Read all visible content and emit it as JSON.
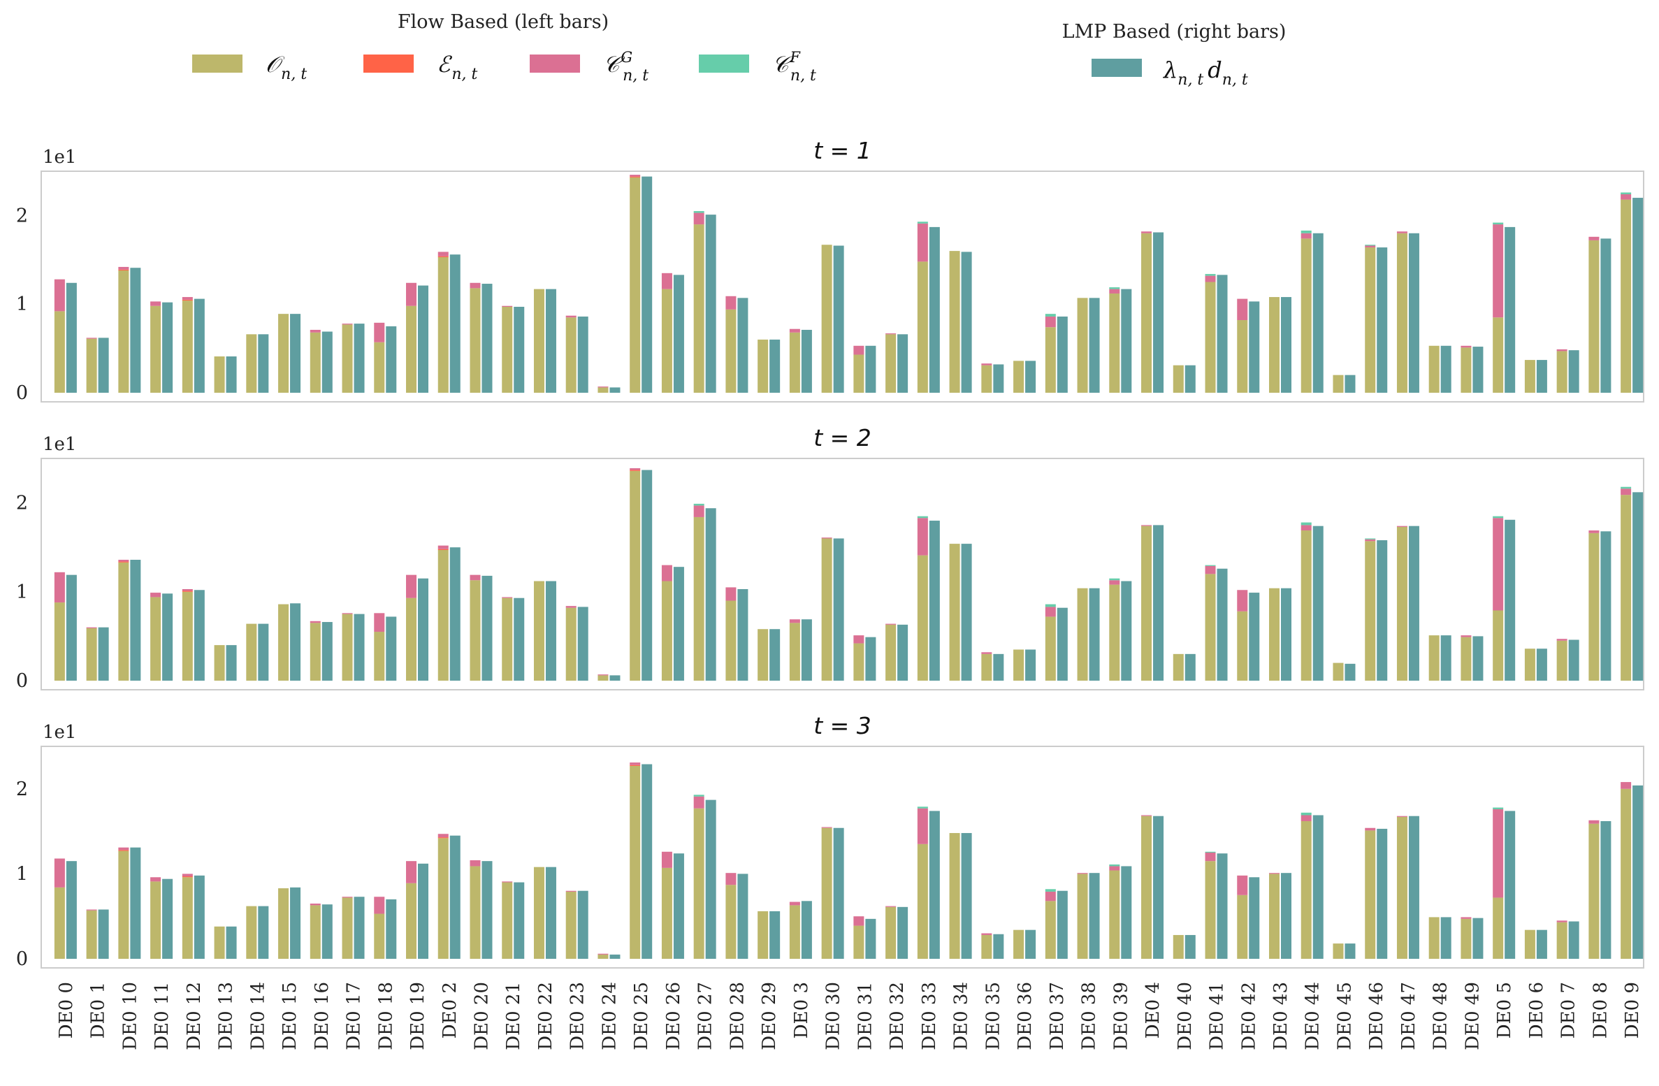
{
  "legend": {
    "flow_title": "Flow Based (left bars)",
    "lmp_title": "LMP Based (right bars)",
    "flow_items": [
      {
        "key": "O",
        "label": "𝒪",
        "sub": "n, t",
        "sup": "",
        "color": "#bdb76b"
      },
      {
        "key": "E",
        "label": "ℰ",
        "sub": "n, t",
        "sup": "",
        "color": "#ff6347"
      },
      {
        "key": "CG",
        "label": "𝒞",
        "sub": "n, t",
        "sup": "G",
        "color": "#db7093"
      },
      {
        "key": "CF",
        "label": "𝒞",
        "sub": "n, t",
        "sup": "F",
        "color": "#66cdaa"
      }
    ],
    "lmp_items": [
      {
        "key": "LMP",
        "label": "λ",
        "sub": "n, t",
        "label2": "d",
        "sub2": "n, t",
        "color": "#5f9ea0"
      }
    ]
  },
  "chart_data": [
    {
      "type": "bar",
      "title": "t = 1",
      "offset_label": "1e1",
      "ylim": [
        0,
        2.5
      ],
      "yticks": [
        "0",
        "1",
        "2"
      ],
      "grid": false,
      "categories": [
        "DE0 0",
        "DE0 1",
        "DE0 10",
        "DE0 11",
        "DE0 12",
        "DE0 13",
        "DE0 14",
        "DE0 15",
        "DE0 16",
        "DE0 17",
        "DE0 18",
        "DE0 19",
        "DE0 2",
        "DE0 20",
        "DE0 21",
        "DE0 22",
        "DE0 23",
        "DE0 24",
        "DE0 25",
        "DE0 26",
        "DE0 27",
        "DE0 28",
        "DE0 29",
        "DE0 3",
        "DE0 30",
        "DE0 31",
        "DE0 32",
        "DE0 33",
        "DE0 34",
        "DE0 35",
        "DE0 36",
        "DE0 37",
        "DE0 38",
        "DE0 39",
        "DE0 4",
        "DE0 40",
        "DE0 41",
        "DE0 42",
        "DE0 43",
        "DE0 44",
        "DE0 45",
        "DE0 46",
        "DE0 47",
        "DE0 48",
        "DE0 49",
        "DE0 5",
        "DE0 6",
        "DE0 7",
        "DE0 8",
        "DE0 9"
      ],
      "series": [
        {
          "name": "𝒪n,t",
          "stack": "flow",
          "values": [
            0.92,
            0.61,
            1.38,
            0.98,
            1.04,
            0.41,
            0.66,
            0.89,
            0.68,
            0.77,
            0.57,
            0.98,
            1.53,
            1.18,
            0.97,
            1.17,
            0.85,
            0.06,
            2.43,
            1.17,
            1.9,
            0.94,
            0.6,
            0.68,
            1.67,
            0.43,
            0.66,
            1.48,
            1.6,
            0.31,
            0.36,
            0.74,
            1.07,
            1.12,
            1.8,
            0.31,
            1.25,
            0.82,
            1.08,
            1.74,
            0.2,
            1.64,
            1.8,
            0.53,
            0.51,
            0.85,
            0.37,
            0.47,
            1.72,
            2.18
          ]
        },
        {
          "name": "ℰn,t",
          "stack": "flow",
          "values": [
            0,
            0,
            0.01,
            0,
            0.01,
            0,
            0,
            0,
            0,
            0,
            0,
            0,
            0.01,
            0,
            0,
            0,
            0,
            0,
            0.01,
            0,
            0,
            0,
            0,
            0,
            0,
            0,
            0,
            0,
            0,
            0,
            0,
            0,
            0,
            0,
            0,
            0,
            0,
            0,
            0,
            0,
            0,
            0,
            0,
            0,
            0,
            0,
            0,
            0,
            0,
            0
          ]
        },
        {
          "name": "𝒞Gn,t",
          "stack": "flow",
          "values": [
            0.36,
            0.01,
            0.03,
            0.05,
            0.03,
            0,
            0,
            0,
            0.03,
            0.01,
            0.22,
            0.26,
            0.05,
            0.06,
            0.01,
            0,
            0.02,
            0.01,
            0.02,
            0.18,
            0.13,
            0.15,
            0,
            0.04,
            0,
            0.1,
            0.01,
            0.43,
            0,
            0.02,
            0,
            0.12,
            0,
            0.05,
            0.02,
            0,
            0.07,
            0.24,
            0,
            0.06,
            0,
            0.02,
            0.02,
            0,
            0.02,
            1.05,
            0,
            0.02,
            0.04,
            0.06
          ]
        },
        {
          "name": "𝒞Fn,t",
          "stack": "flow",
          "values": [
            0,
            0,
            0,
            0,
            0,
            0,
            0,
            0,
            0,
            0,
            0,
            0,
            0,
            0,
            0,
            0,
            0,
            0,
            0,
            0,
            0.02,
            0,
            0,
            0,
            0,
            0,
            0,
            0.02,
            0,
            0,
            0,
            0.03,
            0,
            0.02,
            0,
            0,
            0.02,
            0,
            0,
            0.03,
            0,
            0.01,
            0,
            0,
            0,
            0.02,
            0,
            0,
            0,
            0.02
          ]
        },
        {
          "name": "λn,t dn,t",
          "stack": "lmp",
          "values": [
            1.24,
            0.62,
            1.41,
            1.02,
            1.06,
            0.41,
            0.66,
            0.89,
            0.69,
            0.78,
            0.75,
            1.21,
            1.56,
            1.23,
            0.97,
            1.17,
            0.86,
            0.06,
            2.44,
            1.33,
            2.01,
            1.07,
            0.6,
            0.71,
            1.66,
            0.53,
            0.66,
            1.87,
            1.59,
            0.32,
            0.36,
            0.86,
            1.07,
            1.17,
            1.81,
            0.31,
            1.33,
            1.03,
            1.08,
            1.8,
            0.2,
            1.64,
            1.8,
            0.53,
            0.52,
            1.87,
            0.37,
            0.48,
            1.74,
            2.2
          ]
        }
      ]
    },
    {
      "type": "bar",
      "title": "t = 2",
      "offset_label": "1e1",
      "ylim": [
        0,
        2.5
      ],
      "yticks": [
        "0",
        "1",
        "2"
      ],
      "grid": false,
      "categories": [
        "DE0 0",
        "DE0 1",
        "DE0 10",
        "DE0 11",
        "DE0 12",
        "DE0 13",
        "DE0 14",
        "DE0 15",
        "DE0 16",
        "DE0 17",
        "DE0 18",
        "DE0 19",
        "DE0 2",
        "DE0 20",
        "DE0 21",
        "DE0 22",
        "DE0 23",
        "DE0 24",
        "DE0 25",
        "DE0 26",
        "DE0 27",
        "DE0 28",
        "DE0 29",
        "DE0 3",
        "DE0 30",
        "DE0 31",
        "DE0 32",
        "DE0 33",
        "DE0 34",
        "DE0 35",
        "DE0 36",
        "DE0 37",
        "DE0 38",
        "DE0 39",
        "DE0 4",
        "DE0 40",
        "DE0 41",
        "DE0 42",
        "DE0 43",
        "DE0 44",
        "DE0 45",
        "DE0 46",
        "DE0 47",
        "DE0 48",
        "DE0 49",
        "DE0 5",
        "DE0 6",
        "DE0 7",
        "DE0 8",
        "DE0 9"
      ],
      "series": [
        {
          "name": "𝒪n,t",
          "stack": "flow",
          "values": [
            0.88,
            0.59,
            1.33,
            0.94,
            1.0,
            0.4,
            0.64,
            0.86,
            0.65,
            0.75,
            0.55,
            0.93,
            1.47,
            1.13,
            0.93,
            1.12,
            0.82,
            0.06,
            2.36,
            1.12,
            1.84,
            0.9,
            0.58,
            0.65,
            1.6,
            0.42,
            0.63,
            1.41,
            1.54,
            0.3,
            0.35,
            0.72,
            1.04,
            1.08,
            1.74,
            0.3,
            1.2,
            0.78,
            1.04,
            1.69,
            0.2,
            1.57,
            1.73,
            0.51,
            0.49,
            0.79,
            0.36,
            0.45,
            1.66,
            2.09
          ]
        },
        {
          "name": "ℰn,t",
          "stack": "flow",
          "values": [
            0,
            0,
            0.01,
            0,
            0.01,
            0,
            0,
            0,
            0,
            0,
            0,
            0,
            0.01,
            0,
            0,
            0,
            0,
            0,
            0.01,
            0,
            0,
            0,
            0,
            0,
            0,
            0,
            0,
            0,
            0,
            0,
            0,
            0,
            0,
            0,
            0,
            0,
            0,
            0,
            0,
            0,
            0,
            0,
            0,
            0,
            0,
            0,
            0,
            0,
            0,
            0
          ]
        },
        {
          "name": "𝒞Gn,t",
          "stack": "flow",
          "values": [
            0.34,
            0.01,
            0.02,
            0.05,
            0.02,
            0,
            0,
            0,
            0.02,
            0.01,
            0.21,
            0.26,
            0.04,
            0.06,
            0.01,
            0,
            0.02,
            0.01,
            0.02,
            0.18,
            0.13,
            0.15,
            0,
            0.04,
            0.01,
            0.09,
            0.01,
            0.42,
            0,
            0.02,
            0,
            0.11,
            0,
            0.05,
            0.01,
            0,
            0.09,
            0.24,
            0,
            0.06,
            0,
            0.02,
            0.01,
            0,
            0.02,
            1.04,
            0,
            0.02,
            0.03,
            0.07
          ]
        },
        {
          "name": "𝒞Fn,t",
          "stack": "flow",
          "values": [
            0,
            0,
            0,
            0,
            0,
            0,
            0,
            0,
            0,
            0,
            0,
            0,
            0,
            0,
            0,
            0,
            0,
            0,
            0,
            0,
            0.02,
            0,
            0,
            0,
            0,
            0,
            0,
            0.02,
            0,
            0,
            0,
            0.03,
            0,
            0.02,
            0,
            0,
            0.01,
            0,
            0,
            0.03,
            0,
            0.01,
            0,
            0,
            0,
            0.02,
            0,
            0,
            0,
            0.02
          ]
        },
        {
          "name": "λn,t dn,t",
          "stack": "lmp",
          "values": [
            1.19,
            0.6,
            1.36,
            0.98,
            1.02,
            0.4,
            0.64,
            0.87,
            0.66,
            0.75,
            0.72,
            1.15,
            1.5,
            1.18,
            0.93,
            1.12,
            0.83,
            0.06,
            2.37,
            1.28,
            1.94,
            1.03,
            0.58,
            0.69,
            1.6,
            0.49,
            0.63,
            1.8,
            1.54,
            0.3,
            0.35,
            0.82,
            1.04,
            1.12,
            1.75,
            0.3,
            1.26,
            0.99,
            1.04,
            1.74,
            0.19,
            1.58,
            1.74,
            0.51,
            0.5,
            1.81,
            0.36,
            0.46,
            1.68,
            2.12
          ]
        }
      ]
    },
    {
      "type": "bar",
      "title": "t = 3",
      "offset_label": "1e1",
      "ylim": [
        0,
        2.5
      ],
      "yticks": [
        "0",
        "1",
        "2"
      ],
      "grid": false,
      "categories": [
        "DE0 0",
        "DE0 1",
        "DE0 10",
        "DE0 11",
        "DE0 12",
        "DE0 13",
        "DE0 14",
        "DE0 15",
        "DE0 16",
        "DE0 17",
        "DE0 18",
        "DE0 19",
        "DE0 2",
        "DE0 20",
        "DE0 21",
        "DE0 22",
        "DE0 23",
        "DE0 24",
        "DE0 25",
        "DE0 26",
        "DE0 27",
        "DE0 28",
        "DE0 29",
        "DE0 3",
        "DE0 30",
        "DE0 31",
        "DE0 32",
        "DE0 33",
        "DE0 34",
        "DE0 35",
        "DE0 36",
        "DE0 37",
        "DE0 38",
        "DE0 39",
        "DE0 4",
        "DE0 40",
        "DE0 41",
        "DE0 42",
        "DE0 43",
        "DE0 44",
        "DE0 45",
        "DE0 46",
        "DE0 47",
        "DE0 48",
        "DE0 49",
        "DE0 5",
        "DE0 6",
        "DE0 7",
        "DE0 8",
        "DE0 9"
      ],
      "series": [
        {
          "name": "𝒪n,t",
          "stack": "flow",
          "values": [
            0.84,
            0.57,
            1.27,
            0.91,
            0.96,
            0.38,
            0.62,
            0.83,
            0.63,
            0.72,
            0.53,
            0.89,
            1.42,
            1.09,
            0.9,
            1.08,
            0.79,
            0.05,
            2.27,
            1.07,
            1.77,
            0.87,
            0.56,
            0.63,
            1.54,
            0.39,
            0.61,
            1.35,
            1.48,
            0.28,
            0.34,
            0.68,
            1.0,
            1.04,
            1.68,
            0.28,
            1.15,
            0.75,
            1.0,
            1.62,
            0.18,
            1.51,
            1.67,
            0.49,
            0.47,
            0.72,
            0.34,
            0.43,
            1.59,
            2.0
          ]
        },
        {
          "name": "ℰn,t",
          "stack": "flow",
          "values": [
            0,
            0,
            0.01,
            0,
            0.01,
            0,
            0,
            0,
            0,
            0,
            0,
            0,
            0.01,
            0,
            0,
            0,
            0,
            0,
            0.01,
            0,
            0,
            0,
            0,
            0,
            0,
            0,
            0,
            0,
            0,
            0,
            0,
            0,
            0,
            0,
            0,
            0,
            0,
            0,
            0,
            0,
            0,
            0,
            0,
            0,
            0,
            0,
            0,
            0,
            0,
            0
          ]
        },
        {
          "name": "𝒞Gn,t",
          "stack": "flow",
          "values": [
            0.34,
            0.01,
            0.03,
            0.05,
            0.03,
            0,
            0,
            0,
            0.02,
            0.01,
            0.2,
            0.26,
            0.04,
            0.07,
            0.01,
            0,
            0.01,
            0.01,
            0.03,
            0.19,
            0.14,
            0.14,
            0,
            0.04,
            0.01,
            0.11,
            0.01,
            0.42,
            0,
            0.02,
            0,
            0.11,
            0.01,
            0.05,
            0.01,
            0,
            0.1,
            0.23,
            0.01,
            0.07,
            0,
            0.03,
            0.01,
            0,
            0.02,
            1.04,
            0,
            0.02,
            0.04,
            0.08
          ]
        },
        {
          "name": "𝒞Fn,t",
          "stack": "flow",
          "values": [
            0,
            0,
            0,
            0,
            0,
            0,
            0,
            0,
            0,
            0,
            0,
            0,
            0,
            0,
            0,
            0,
            0,
            0,
            0,
            0,
            0.02,
            0,
            0,
            0,
            0,
            0,
            0,
            0.02,
            0,
            0,
            0,
            0.03,
            0,
            0.02,
            0,
            0,
            0.01,
            0,
            0,
            0.03,
            0,
            0,
            0,
            0,
            0,
            0.02,
            0,
            0,
            0,
            0
          ]
        },
        {
          "name": "λn,t dn,t",
          "stack": "lmp",
          "values": [
            1.15,
            0.58,
            1.31,
            0.94,
            0.98,
            0.38,
            0.62,
            0.84,
            0.64,
            0.73,
            0.7,
            1.12,
            1.45,
            1.15,
            0.9,
            1.08,
            0.8,
            0.05,
            2.29,
            1.24,
            1.87,
            1.0,
            0.56,
            0.68,
            1.54,
            0.47,
            0.61,
            1.74,
            1.48,
            0.29,
            0.34,
            0.8,
            1.01,
            1.09,
            1.68,
            0.28,
            1.24,
            0.96,
            1.01,
            1.69,
            0.18,
            1.53,
            1.68,
            0.49,
            0.48,
            1.74,
            0.34,
            0.44,
            1.62,
            2.04
          ]
        }
      ]
    }
  ]
}
